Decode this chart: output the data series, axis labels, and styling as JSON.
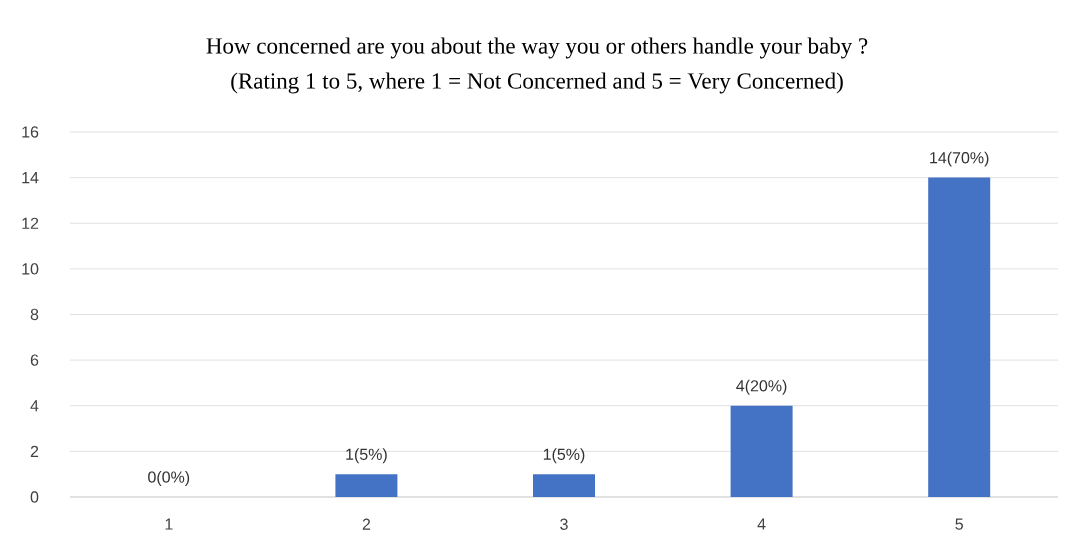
{
  "chart_data": {
    "type": "bar",
    "title": "How concerned are you about the way you or others handle your baby ?",
    "subtitle": "(Rating 1 to 5, where 1 = Not Concerned and 5 = Very Concerned)",
    "categories": [
      "1",
      "2",
      "3",
      "4",
      "5"
    ],
    "values": [
      0,
      1,
      1,
      4,
      14
    ],
    "value_labels": [
      "0(0%)",
      "1(5%)",
      "1(5%)",
      "4(20%)",
      "14(70%)"
    ],
    "color": "#4472c4",
    "ylim": [
      0,
      16
    ],
    "yticks": [
      0,
      2,
      4,
      6,
      8,
      10,
      12,
      14,
      16
    ],
    "grid": "y"
  }
}
